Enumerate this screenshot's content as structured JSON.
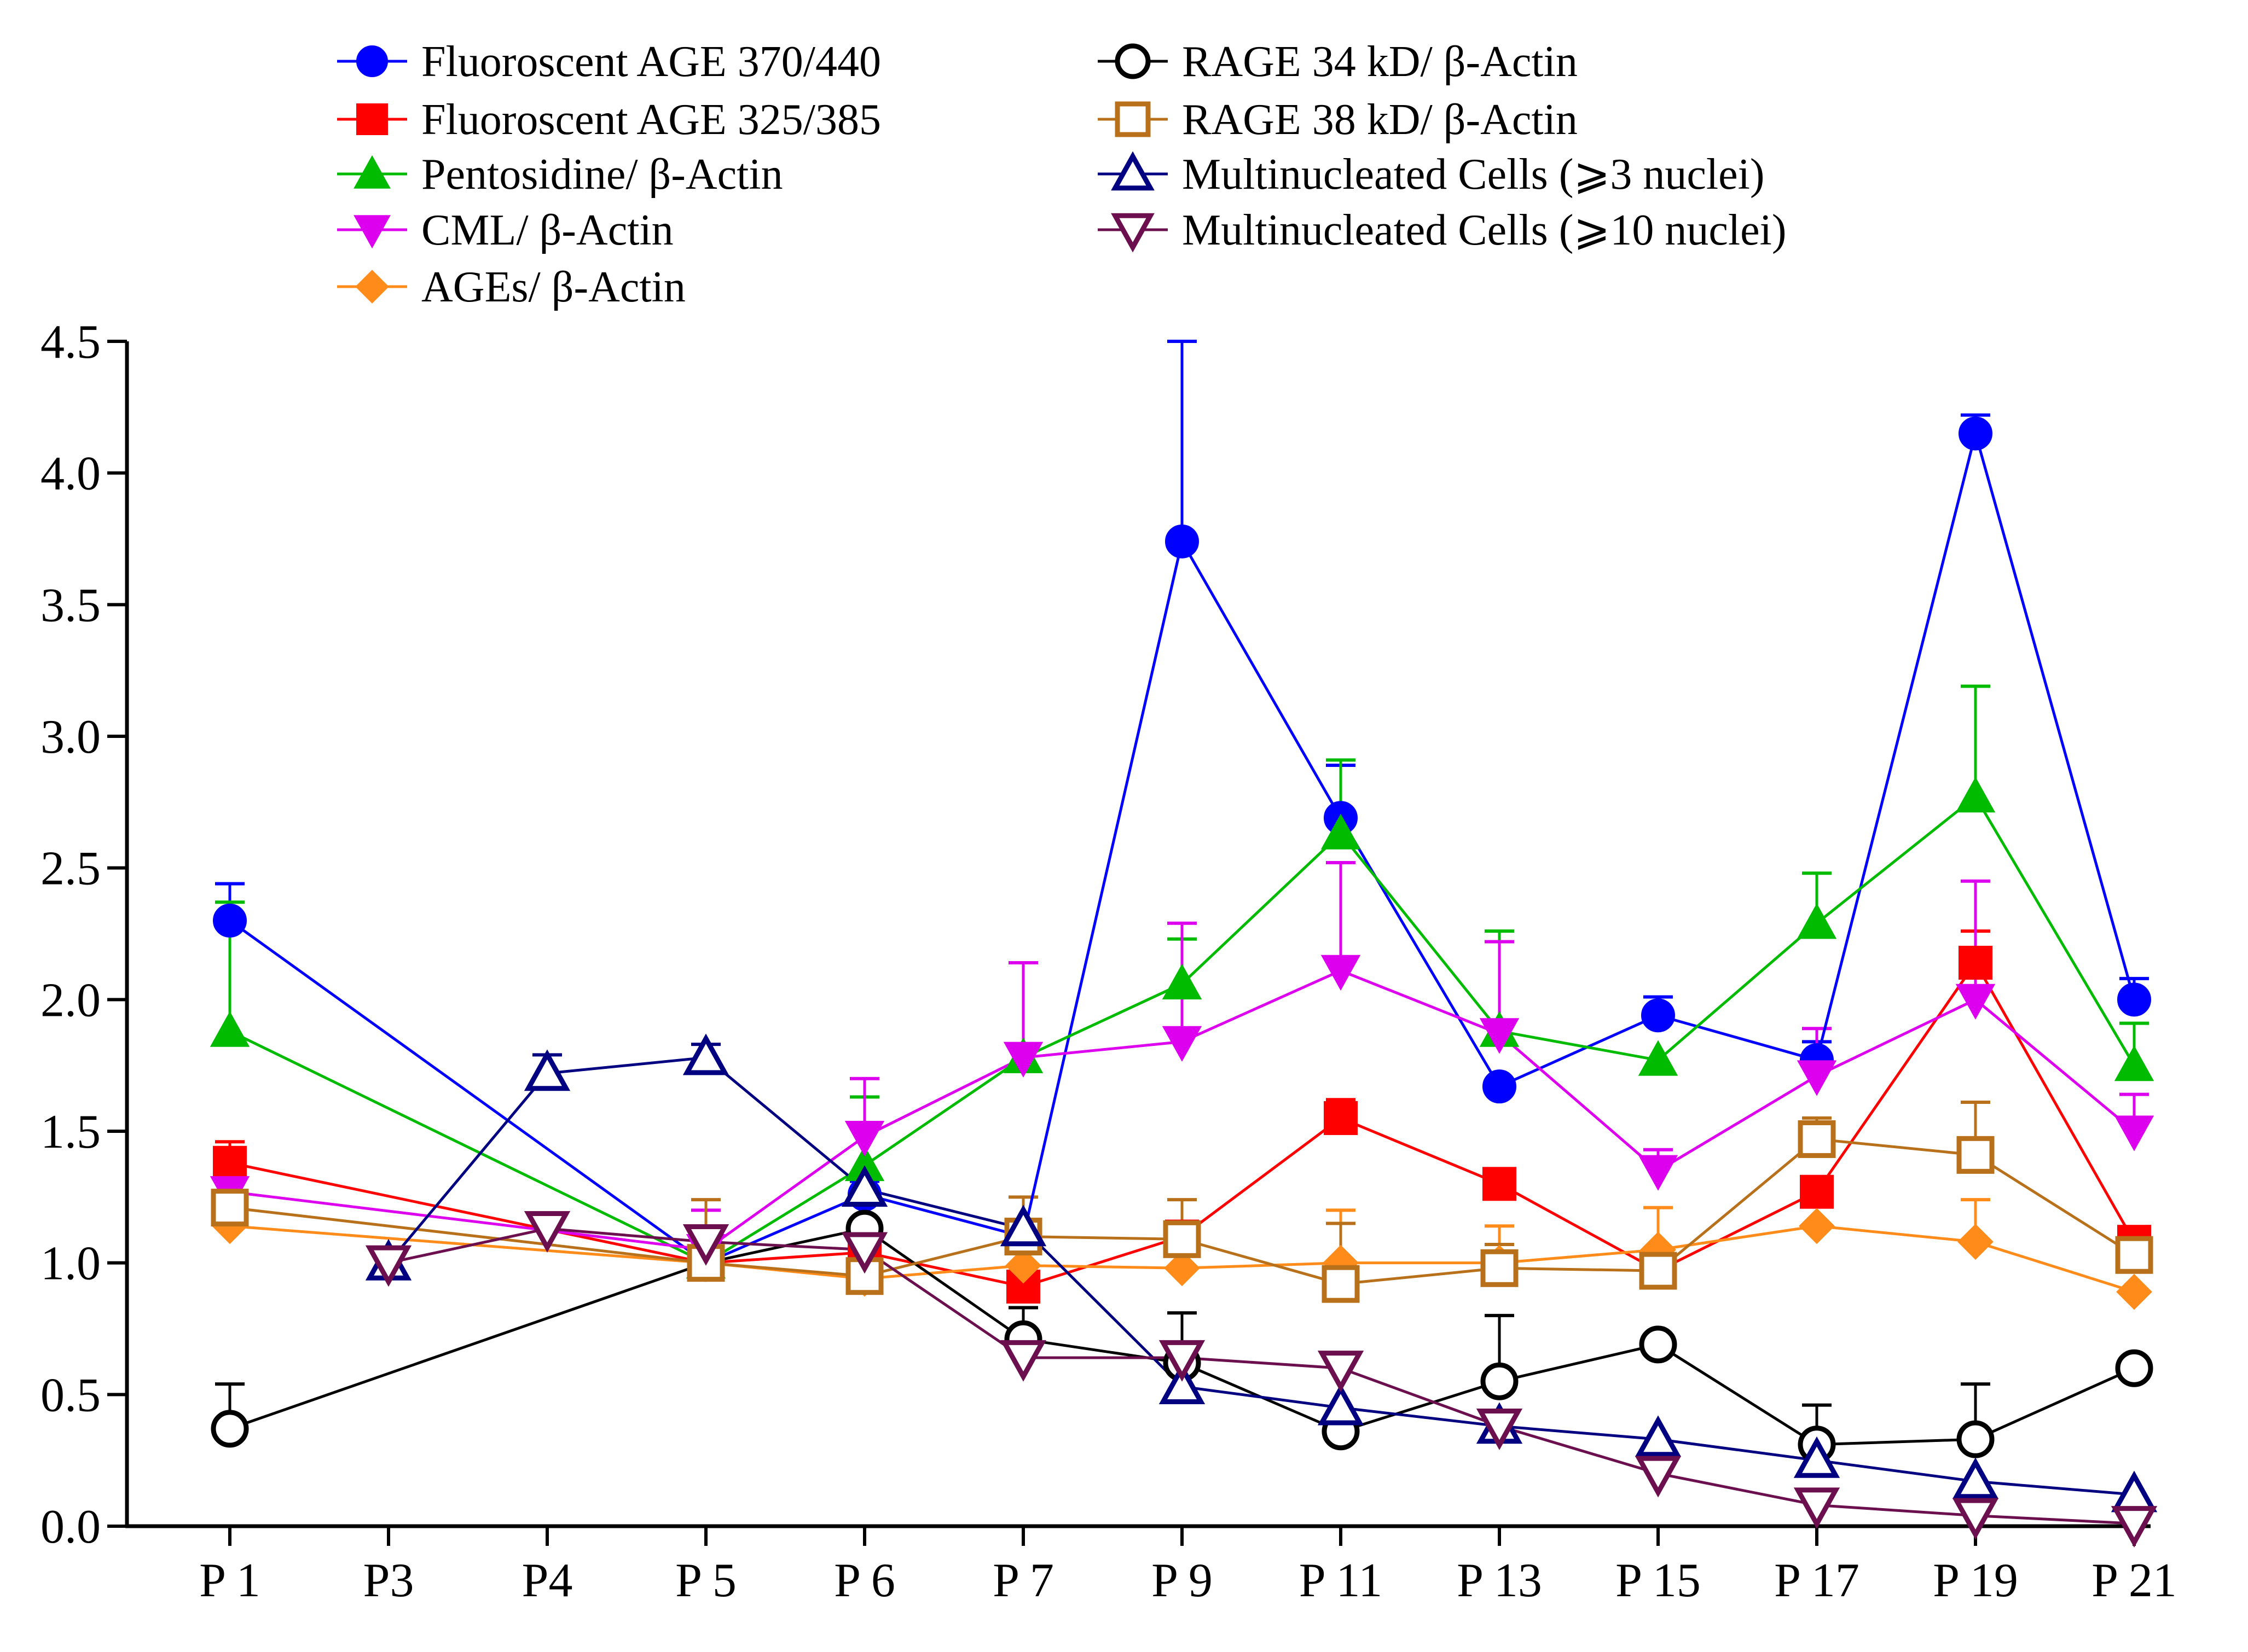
{
  "chart_data": {
    "type": "line",
    "title": "",
    "xlabel": "",
    "ylabel": "",
    "categories": [
      "P 1",
      "P3",
      "P4",
      "P 5",
      "P 6",
      "P 7",
      "P 9",
      "P 11",
      "P 13",
      "P 15",
      "P 17",
      "P 19",
      "P 21"
    ],
    "ylim": [
      0,
      4.5
    ],
    "yticks": [
      "0.0",
      "0.5",
      "1.0",
      "1.5",
      "2.0",
      "2.5",
      "3.0",
      "3.5",
      "4.0",
      "4.5"
    ],
    "grid": false,
    "legend_position": "top",
    "series": [
      {
        "name": "Fluoroscent AGE 370/440",
        "color": "#0000ff",
        "marker": "circle",
        "filled": true,
        "values": [
          2.3,
          null,
          null,
          1.0,
          1.26,
          1.1,
          3.74,
          2.69,
          1.67,
          1.94,
          1.77,
          4.15,
          2.0
        ],
        "errors": [
          0.14,
          null,
          null,
          0,
          0.05,
          0.05,
          0.76,
          0.2,
          0,
          0.07,
          0.07,
          0.07,
          0.08
        ]
      },
      {
        "name": "Fluoroscent AGE 325/385",
        "color": "#ff0000",
        "marker": "square",
        "filled": true,
        "values": [
          1.38,
          null,
          null,
          1.0,
          1.04,
          0.91,
          1.1,
          1.55,
          1.3,
          0.97,
          1.27,
          2.14,
          1.08
        ],
        "errors": [
          0.08,
          null,
          null,
          0,
          0.05,
          0,
          0.03,
          0.07,
          0,
          0,
          0,
          0.12,
          0
        ]
      },
      {
        "name": "Pentosidine/ β-Actin",
        "color": "#00bb00",
        "marker": "triangle-up",
        "filled": true,
        "values": [
          1.88,
          null,
          null,
          1.0,
          1.37,
          1.78,
          2.06,
          2.63,
          1.88,
          1.77,
          2.29,
          2.77,
          1.75
        ],
        "errors": [
          0.49,
          null,
          null,
          0,
          0.26,
          0,
          0.17,
          0.28,
          0.38,
          0,
          0.19,
          0.42,
          0.16
        ]
      },
      {
        "name": "CML/ β-Actin",
        "color": "#dd00ee",
        "marker": "triangle-down",
        "filled": true,
        "values": [
          1.27,
          null,
          null,
          1.05,
          1.48,
          1.78,
          1.84,
          2.11,
          1.87,
          1.35,
          1.71,
          2.0,
          1.5
        ],
        "errors": [
          0,
          null,
          null,
          0.15,
          0.22,
          0.36,
          0.45,
          0.41,
          0.35,
          0.08,
          0.18,
          0.45,
          0.14
        ]
      },
      {
        "name": "AGEs/ β-Actin",
        "color": "#ff8c1a",
        "marker": "diamond",
        "filled": true,
        "values": [
          1.14,
          null,
          null,
          1.0,
          0.94,
          0.99,
          0.98,
          1.0,
          1.0,
          1.05,
          1.14,
          1.08,
          0.89
        ],
        "errors": [
          0,
          null,
          null,
          0,
          0,
          0,
          0,
          0.2,
          0.14,
          0.16,
          0,
          0.16,
          0
        ]
      },
      {
        "name": "RAGE 34 kD/ β-Actin",
        "color": "#000000",
        "marker": "circle",
        "filled": false,
        "values": [
          0.37,
          null,
          null,
          1.0,
          1.13,
          0.71,
          0.62,
          0.36,
          0.55,
          0.69,
          0.31,
          0.33,
          0.6
        ],
        "errors": [
          0.17,
          null,
          null,
          0,
          0,
          0.12,
          0.19,
          0,
          0.25,
          0,
          0.15,
          0.21,
          0
        ]
      },
      {
        "name": "RAGE 38 kD/ β-Actin",
        "color": "#b8711a",
        "marker": "square",
        "filled": false,
        "values": [
          1.21,
          null,
          null,
          1.0,
          0.95,
          1.1,
          1.09,
          0.92,
          0.98,
          0.97,
          1.47,
          1.41,
          1.03
        ],
        "errors": [
          0,
          null,
          null,
          0.24,
          0,
          0.15,
          0.15,
          0.23,
          0.09,
          0,
          0.08,
          0.2,
          0
        ]
      },
      {
        "name": "Multinucleated Cells (⩾3 nuclei)",
        "color": "#000080",
        "marker": "triangle-up",
        "filled": false,
        "values": [
          null,
          1.0,
          1.72,
          1.78,
          1.28,
          1.13,
          0.53,
          0.45,
          0.38,
          0.33,
          0.25,
          0.17,
          0.12
        ],
        "errors": [
          null,
          0,
          0.07,
          0.05,
          0,
          0,
          0,
          0,
          0,
          0,
          0,
          0,
          0
        ]
      },
      {
        "name": "Multinucleated Cells (⩾10 nuclei)",
        "color": "#6b0f4f",
        "marker": "triangle-down",
        "filled": false,
        "values": [
          null,
          1.0,
          1.13,
          1.08,
          1.05,
          0.64,
          0.64,
          0.6,
          0.38,
          0.2,
          0.08,
          0.04,
          0.01
        ],
        "errors": [
          null,
          0,
          0,
          0,
          0,
          0,
          0,
          0,
          0,
          0,
          0,
          0,
          0
        ]
      }
    ]
  }
}
